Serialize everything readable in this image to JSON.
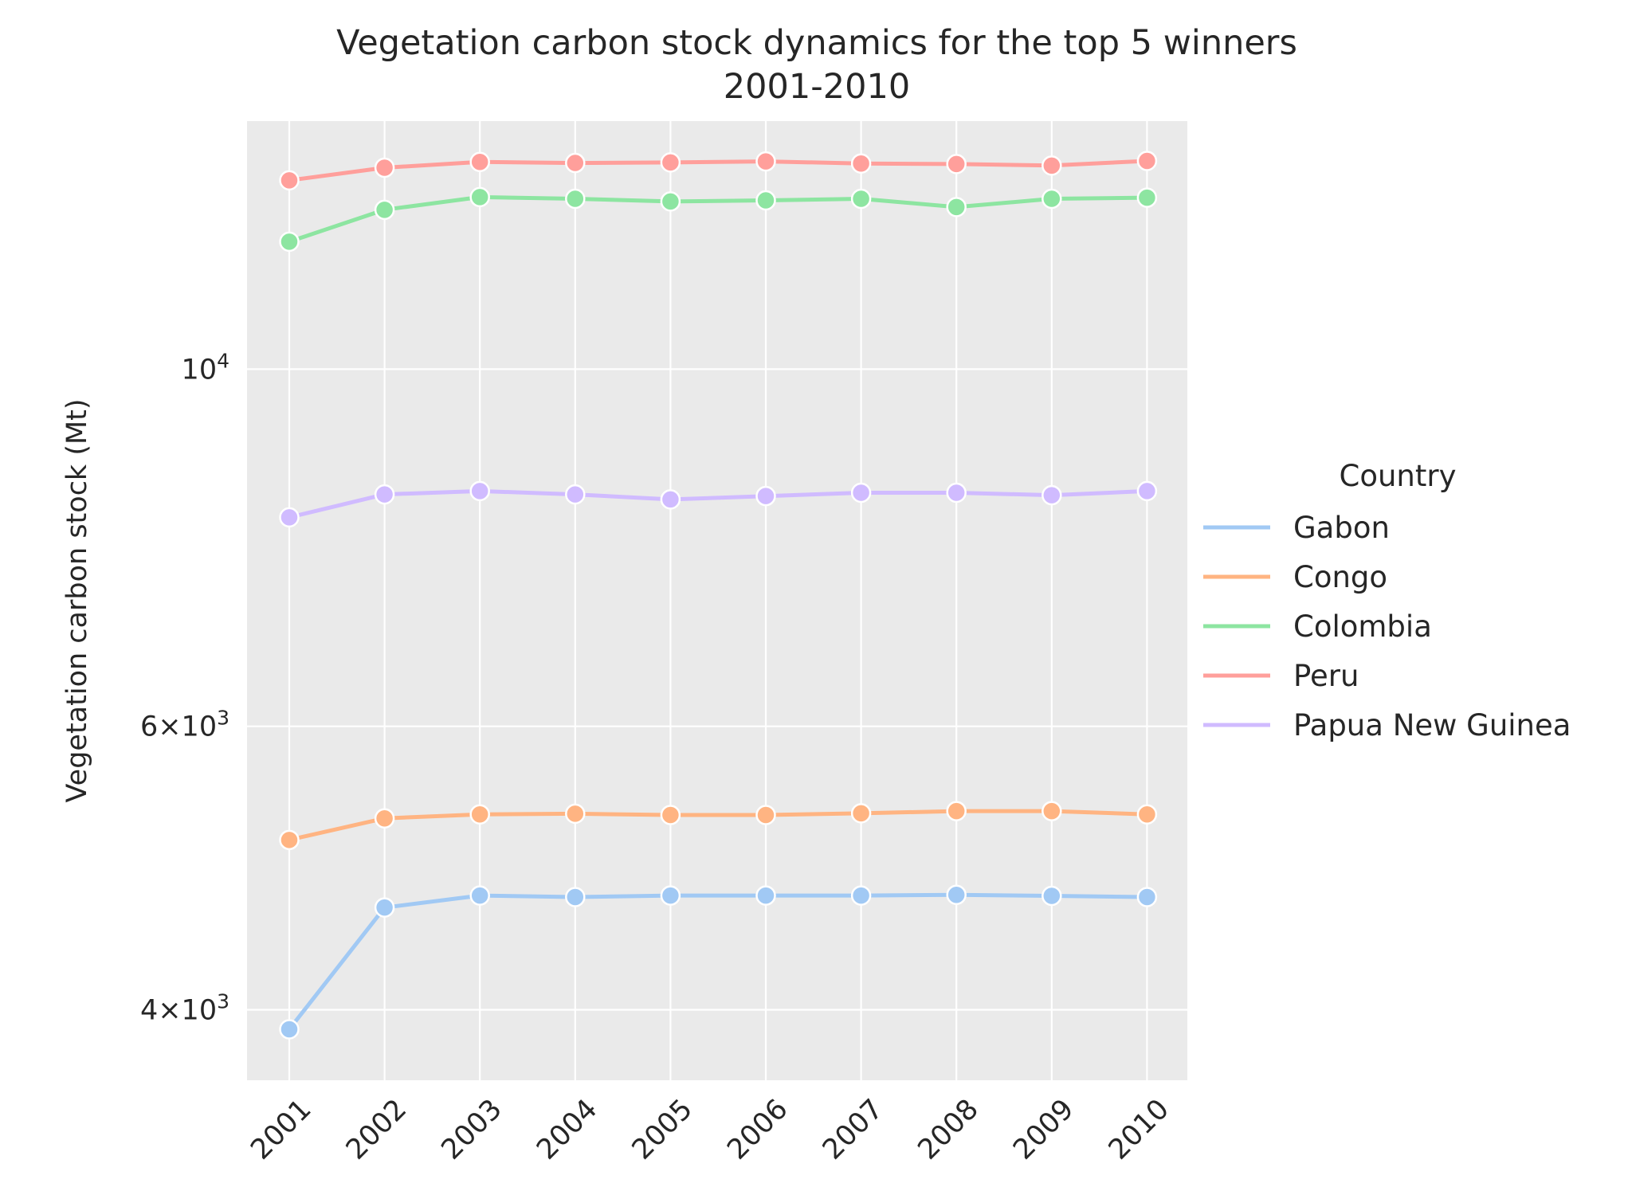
{
  "chart_data": {
    "type": "line",
    "title": "Vegetation carbon stock dynamics for the top 5 winners",
    "subtitle": "2001-2010",
    "xlabel": "",
    "ylabel": "Vegetation carbon stock (Mt)",
    "y_scale": "log",
    "ylim": [
      3750,
      15400
    ],
    "y_ticks": [
      {
        "value": 4000,
        "label_base": "4×10",
        "label_exp": "3"
      },
      {
        "value": 6000,
        "label_base": "6×10",
        "label_exp": "3"
      },
      {
        "value": 10000,
        "label_base": "10",
        "label_exp": "4"
      }
    ],
    "x": [
      "2001",
      "2002",
      "2003",
      "2004",
      "2005",
      "2006",
      "2007",
      "2008",
      "2009",
      "2010"
    ],
    "grid": true,
    "legend": {
      "title": "Country",
      "position": "right"
    },
    "series": [
      {
        "name": "Gabon",
        "color": "#a1c9f4",
        "values": [
          3890,
          4630,
          4710,
          4700,
          4710,
          4710,
          4710,
          4715,
          4708,
          4700
        ]
      },
      {
        "name": "Congo",
        "color": "#ffb482",
        "values": [
          5100,
          5260,
          5290,
          5295,
          5285,
          5285,
          5298,
          5315,
          5315,
          5290
        ]
      },
      {
        "name": "Colombia",
        "color": "#8de5a1",
        "values": [
          12000,
          12560,
          12790,
          12760,
          12710,
          12730,
          12760,
          12610,
          12760,
          12780
        ]
      },
      {
        "name": "Peru",
        "color": "#ff9f9b",
        "values": [
          13100,
          13340,
          13450,
          13430,
          13440,
          13460,
          13420,
          13410,
          13380,
          13470
        ]
      },
      {
        "name": "Papua New Guinea",
        "color": "#d0bbff",
        "values": [
          8090,
          8360,
          8400,
          8360,
          8300,
          8340,
          8380,
          8380,
          8350,
          8400
        ]
      }
    ]
  }
}
